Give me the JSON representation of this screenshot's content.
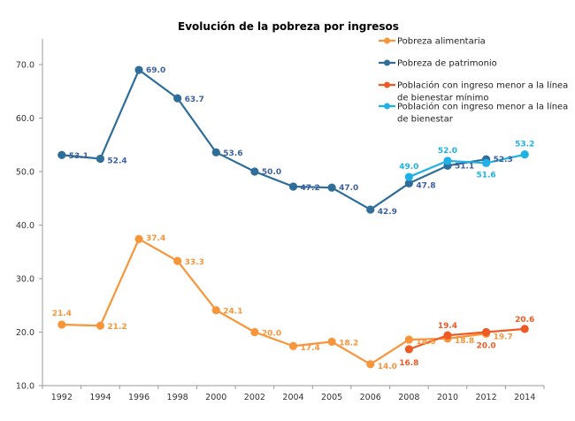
{
  "chart_data": {
    "type": "line",
    "title": "Evolución de la pobreza por ingresos",
    "xlabel": "",
    "ylabel": "",
    "categories": [
      "1992",
      "1994",
      "1996",
      "1998",
      "2000",
      "2002",
      "2004",
      "2005",
      "2006",
      "2008",
      "2010",
      "2012",
      "2014"
    ],
    "ylim": [
      10,
      70
    ],
    "yticks": [
      10,
      20,
      30,
      40,
      50,
      60,
      70
    ],
    "ytick_labels": [
      "10.0",
      "20.0",
      "30.0",
      "40.0",
      "50.0",
      "60.0",
      "70.0"
    ],
    "grid": false,
    "legend_position": "top-right",
    "series": [
      {
        "name": "Pobreza alimentaria",
        "color": "#F7953A",
        "values": [
          21.4,
          21.2,
          37.4,
          33.3,
          24.1,
          20.0,
          17.4,
          18.2,
          14.0,
          18.6,
          18.8,
          19.7,
          null
        ]
      },
      {
        "name": "Pobreza de patrimonio",
        "color": "#2E6E99",
        "label_color": "#3E5F9E",
        "values": [
          53.1,
          52.4,
          69.0,
          63.7,
          53.6,
          50.0,
          47.2,
          47.0,
          42.9,
          47.8,
          51.1,
          52.3,
          null
        ]
      },
      {
        "name": "Población con ingreso menor a la línea de bienestar mínimo",
        "color": "#EE5A24",
        "values": [
          null,
          null,
          null,
          null,
          null,
          null,
          null,
          null,
          null,
          16.8,
          19.4,
          20.0,
          20.6
        ]
      },
      {
        "name": "Población con ingreso menor a la línea de bienestar",
        "color": "#1FB0E6",
        "values": [
          null,
          null,
          null,
          null,
          null,
          null,
          null,
          null,
          null,
          49.0,
          52.0,
          51.6,
          53.2
        ]
      }
    ],
    "legend": [
      {
        "lines": [
          "Pobreza alimentaria"
        ]
      },
      {
        "lines": [
          "Pobreza de patrimonio"
        ]
      },
      {
        "lines": [
          "Población con ingreso menor a la línea",
          "de bienestar mínimo"
        ]
      },
      {
        "lines": [
          "Población con ingreso menor a la línea",
          "de bienestar"
        ]
      }
    ]
  }
}
